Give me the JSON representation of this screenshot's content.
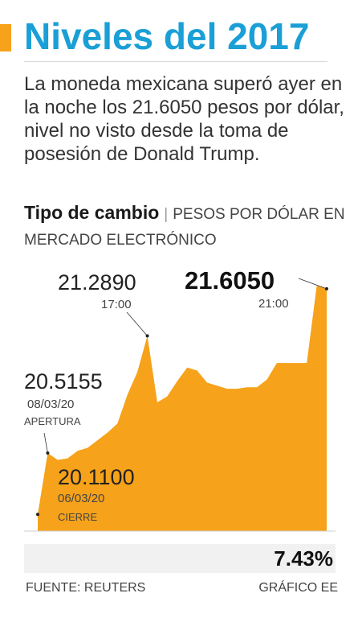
{
  "header": {
    "title": "Niveles del 2017",
    "subtitle": "La moneda mexicana superó ayer en la noche los 21.6050 pesos por dólar, nivel no visto desde la toma de posesión de Donald Trump.",
    "chart_title": "Tipo de cambio",
    "chart_unit": "PESOS POR DÓLAR EN MERCADO ELECTRÓNICO"
  },
  "colors": {
    "accent": "#f6a21a",
    "title": "#1a9fd6",
    "area": "#f6a21a"
  },
  "annotations": {
    "close": {
      "value": "20.1100",
      "date": "06/03/20",
      "label": "CIERRE"
    },
    "open": {
      "value": "20.5155",
      "date": "08/03/20",
      "label": "APERTURA"
    },
    "peak": {
      "value": "21.2890",
      "time": "17:00"
    },
    "last": {
      "value": "21.6050",
      "time": "21:00"
    }
  },
  "change": {
    "value": "7.43%"
  },
  "footer": {
    "source": "FUENTE: REUTERS",
    "credit": "GRÁFICO EE"
  },
  "chart_data": {
    "type": "area",
    "x": [
      0,
      1,
      2,
      3,
      4,
      5,
      6,
      7,
      8,
      9,
      10,
      11,
      12,
      13,
      14,
      15,
      16,
      17,
      18,
      19,
      20,
      21,
      22,
      23,
      24,
      25,
      26,
      27,
      28,
      29
    ],
    "values": [
      20.11,
      20.5155,
      20.47,
      20.48,
      20.53,
      20.55,
      20.6,
      20.65,
      20.71,
      20.9,
      21.05,
      21.289,
      20.85,
      20.89,
      20.99,
      21.08,
      21.06,
      20.98,
      20.96,
      20.94,
      20.94,
      20.95,
      20.95,
      21.0,
      21.11,
      21.11,
      21.11,
      21.11,
      21.62,
      21.6
    ],
    "ylim": [
      20.0,
      21.7
    ],
    "annotated_indices": [
      0,
      1,
      11,
      29
    ]
  }
}
